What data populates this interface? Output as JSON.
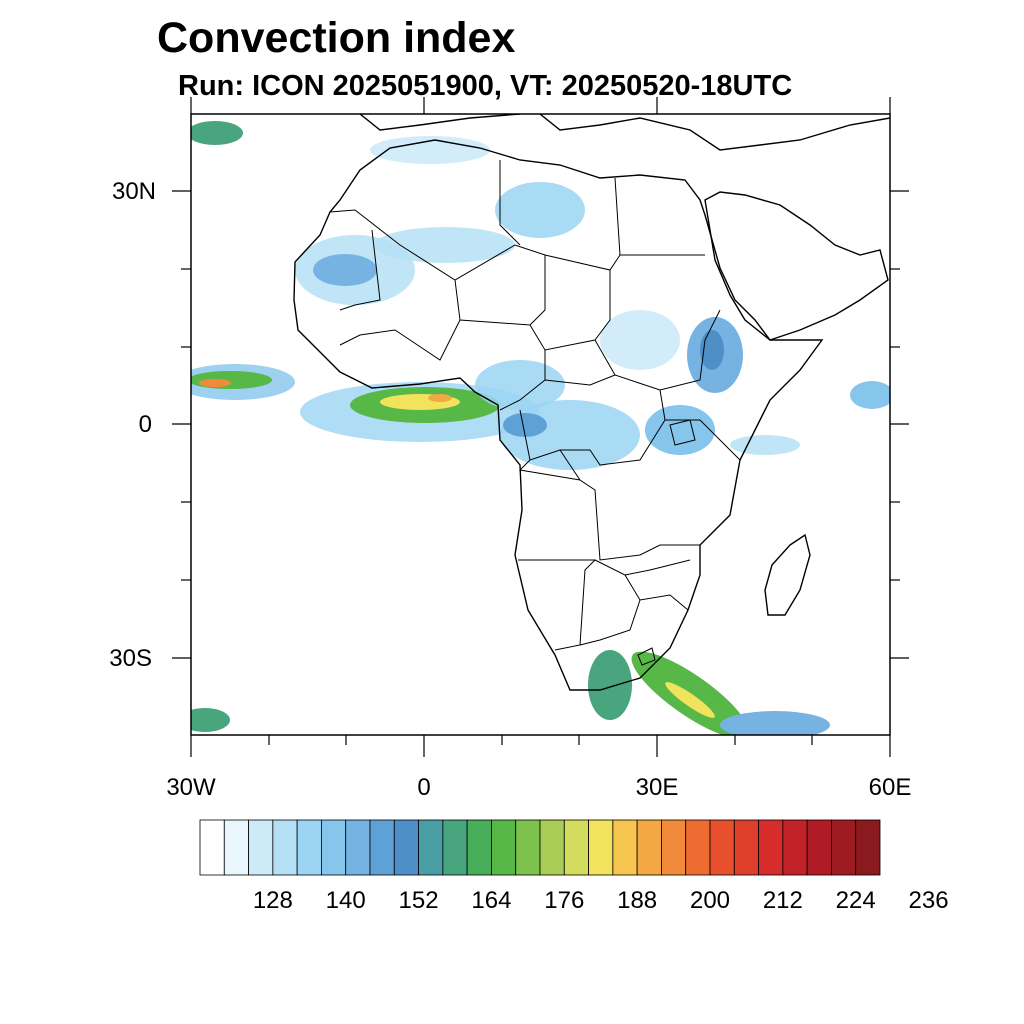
{
  "title": "Convection index",
  "subtitle": "Run: ICON 2025051900,  VT: 20250520-18UTC",
  "map": {
    "lon_range": [
      -30,
      60
    ],
    "lat_range": [
      -40,
      40
    ],
    "y_axis_labels": [
      "30N",
      "0",
      "30S"
    ],
    "x_axis_labels": [
      "30W",
      "0",
      "30E",
      "60E"
    ]
  },
  "colorbar": {
    "labels": [
      "128",
      "140",
      "152",
      "164",
      "176",
      "188",
      "200",
      "212",
      "224",
      "236"
    ],
    "colors": [
      "#ffffff",
      "#eaf6fd",
      "#cdeaf8",
      "#b4e0f6",
      "#9bd5f3",
      "#86c5ec",
      "#76b3e3",
      "#5ea1d6",
      "#4d8fc6",
      "#4a9fa5",
      "#48a57e",
      "#48ae5a",
      "#57b847",
      "#7ec24e",
      "#a8cc55",
      "#d2dc5d",
      "#f1e35c",
      "#f5c54f",
      "#f4a843",
      "#f18b3b",
      "#ee6b32",
      "#e7502c",
      "#df3e2b",
      "#d62d2c",
      "#c32229",
      "#b01c26",
      "#9e1b22",
      "#8a1a1e"
    ]
  }
}
